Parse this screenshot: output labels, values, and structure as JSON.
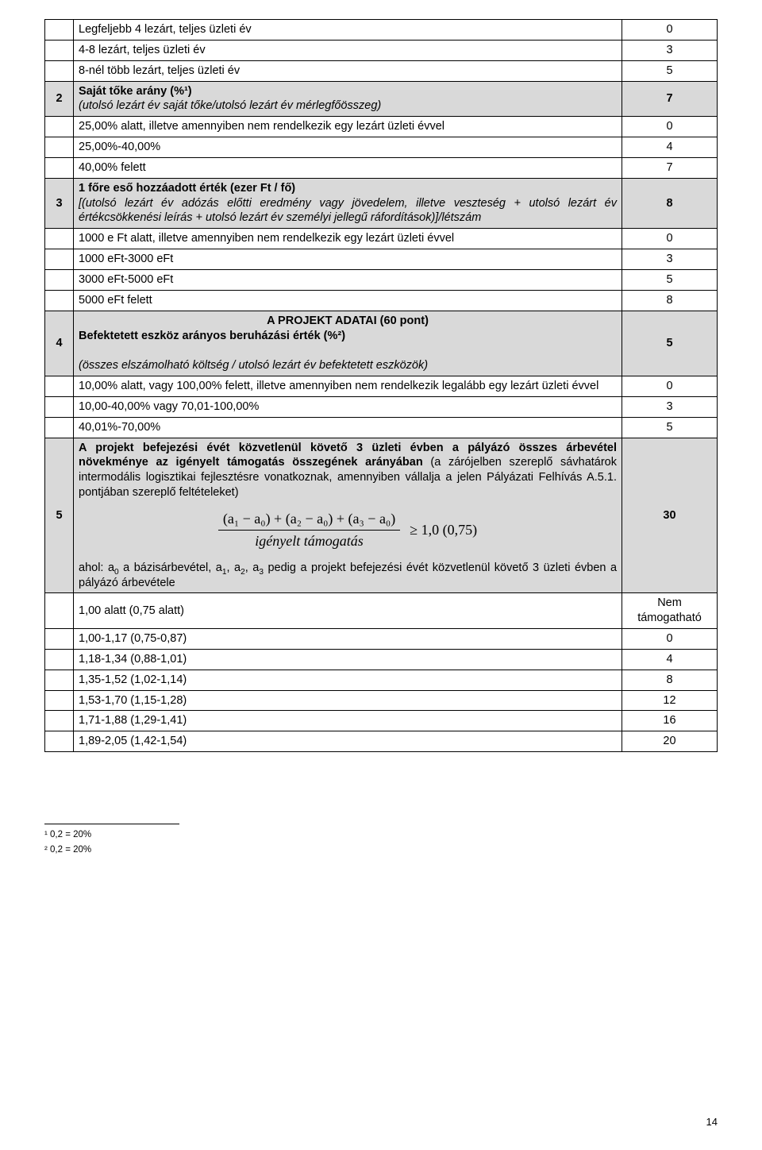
{
  "colors": {
    "header_bg": "#d9d9d9",
    "border": "#000000",
    "text": "#000000",
    "background": "#ffffff"
  },
  "typography": {
    "body_family": "Verdana, Arial, sans-serif",
    "math_family": "Times New Roman, serif",
    "body_size_pt": 11,
    "math_size_pt": 13
  },
  "rows": {
    "r1_text": "Legfeljebb 4 lezárt, teljes üzleti év",
    "r1_val": "0",
    "r2_text": "4-8 lezárt, teljes üzleti év",
    "r2_val": "3",
    "r3_text": "8-nél több lezárt, teljes üzleti év",
    "r3_val": "5",
    "r4_num": "2",
    "r4_title": "Saját tőke arány (%¹)",
    "r4_sub": "(utolsó lezárt év saját tőke/utolsó lezárt év mérlegfőösszeg)",
    "r4_val": "7",
    "r5_text": "25,00% alatt, illetve amennyiben nem rendelkezik egy lezárt üzleti évvel",
    "r5_val": "0",
    "r6_text": "25,00%-40,00%",
    "r6_val": "4",
    "r7_text": "40,00% felett",
    "r7_val": "7",
    "r8_num": "3",
    "r8_title": "1 főre eső hozzáadott érték (ezer Ft / fő)",
    "r8_sub": "[(utolsó lezárt év adózás előtti eredmény vagy jövedelem, illetve veszteség + utolsó lezárt év értékcsökkenési leírás + utolsó lezárt év személyi jellegű ráfordítások)]/létszám",
    "r8_val": "8",
    "r9_text": "1000 e Ft alatt, illetve amennyiben nem rendelkezik egy lezárt üzleti évvel",
    "r9_val": "0",
    "r10_text": "1000 eFt-3000 eFt",
    "r10_val": "3",
    "r11_text": "3000 eFt-5000 eFt",
    "r11_val": "5",
    "r12_text": "5000 eFt felett",
    "r12_val": "8",
    "section_title": "A PROJEKT ADATAI (60 pont)",
    "r13_num": "4",
    "r13_title": "Befektetett eszköz arányos beruházási érték  (%²)",
    "r13_sub": "(összes elszámolható költség / utolsó lezárt év befektetett eszközök)",
    "r13_val": "5",
    "r14_text": "10,00% alatt, vagy 100,00% felett, illetve amennyiben nem rendelkezik legalább egy lezárt üzleti évvel",
    "r14_val": "0",
    "r15_text": "10,00-40,00% vagy 70,01-100,00%",
    "r15_val": "3",
    "r16_text": "40,01%-70,00%",
    "r16_val": "5",
    "r17_num": "5",
    "r17_para": "A projekt befejezési évét közvetlenül követő 3 üzleti évben a pályázó összes árbevétel növekménye az igényelt támogatás összegének arányában",
    "r17_para2": " (a zárójelben szereplő sávhatárok intermodális logisztikai fejlesztésre vonatkoznak, amennyiben vállalja a jelen Pályázati Felhívás A.5.1. pontjában szereplő feltételeket)",
    "r17_frac_num": "(a₁ − a₀) + (a₂ − a₀) + (a₃ − a₀)",
    "r17_frac_den": "igényelt támogatás",
    "r17_geq": "≥ 1,0 (0,75)",
    "r17_note_pre": "ahol: a",
    "r17_note_a0": "0",
    "r17_note_mid1": " a bázisárbevétel, a",
    "r17_note_a1": "1",
    "r17_note_mid2": ", a",
    "r17_note_a2": "2",
    "r17_note_mid3": ", a",
    "r17_note_a3": "3",
    "r17_note_end": " pedig a projekt befejezési évét közvetlenül követő 3 üzleti évben a pályázó árbevétele",
    "r17_val": "30",
    "r18_text": "1,00 alatt (0,75 alatt)",
    "r18_val": "Nem támogatható",
    "r19_text": "1,00-1,17 (0,75-0,87)",
    "r19_val": "0",
    "r20_text": "1,18-1,34 (0,88-1,01)",
    "r20_val": "4",
    "r21_text": "1,35-1,52 (1,02-1,14)",
    "r21_val": "8",
    "r22_text": "1,53-1,70 (1,15-1,28)",
    "r22_val": "12",
    "r23_text": "1,71-1,88 (1,29-1,41)",
    "r23_val": "16",
    "r24_text": "1,89-2,05 (1,42-1,54)",
    "r24_val": "20"
  },
  "footnotes": {
    "f1": "¹ 0,2 = 20%",
    "f2": "² 0,2 = 20%"
  },
  "page_number": "14"
}
